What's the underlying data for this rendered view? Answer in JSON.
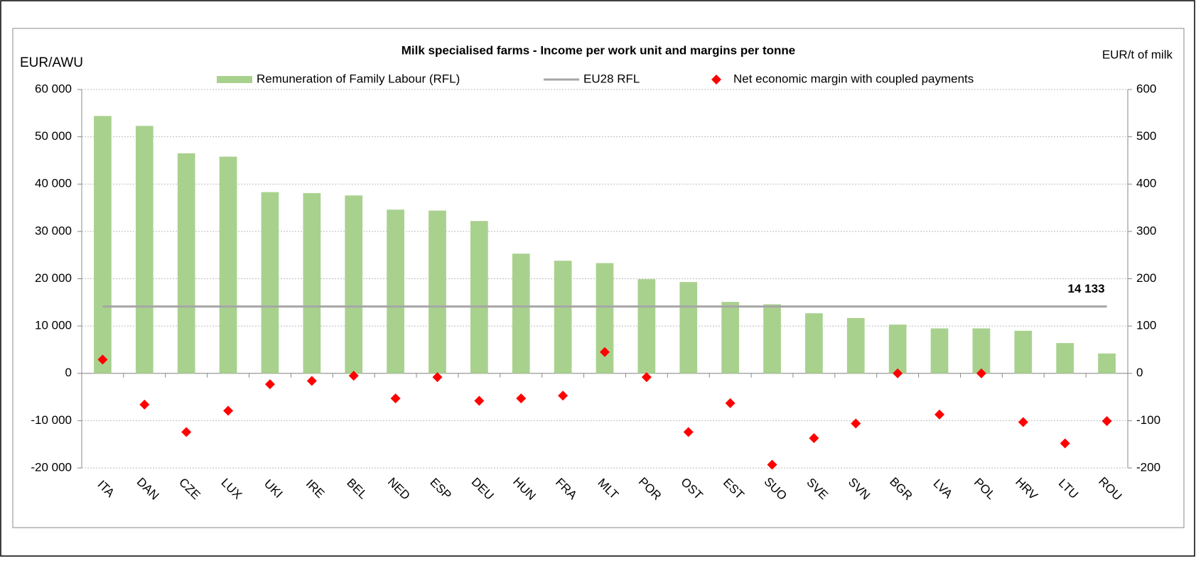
{
  "chart_data": {
    "type": "combo",
    "title": "Milk specialised  farms - Income per work unit and margins per tonne",
    "y_label": "EUR/AWU",
    "y2_label": "EUR/t  of milk",
    "categories": [
      "ITA",
      "DAN",
      "CZE",
      "LUX",
      "UKI",
      "IRE",
      "BEL",
      "NED",
      "ESP",
      "DEU",
      "HUN",
      "FRA",
      "MLT",
      "POR",
      "OST",
      "EST",
      "SUO",
      "SVE",
      "SVN",
      "BGR",
      "LVA",
      "POL",
      "HRV",
      "LTU",
      "ROU"
    ],
    "series": [
      {
        "name": "Remuneration of Family Labour (RFL)",
        "type": "bar",
        "color": "#a9d18e",
        "values": [
          54400,
          52300,
          46500,
          45800,
          38300,
          38100,
          37600,
          34600,
          34400,
          32200,
          25300,
          23800,
          23300,
          19900,
          19300,
          15100,
          14600,
          12700,
          11700,
          10300,
          9500,
          9500,
          9000,
          6400,
          4200
        ]
      },
      {
        "name": "EU28 RFL",
        "type": "line",
        "color": "#a6a6a6",
        "values": [
          14133,
          14133,
          14133,
          14133,
          14133,
          14133,
          14133,
          14133,
          14133,
          14133,
          14133,
          14133,
          14133,
          14133,
          14133,
          14133,
          14133,
          14133,
          14133,
          14133,
          14133,
          14133,
          14133,
          14133,
          14133
        ],
        "value_labels": [
          null,
          null,
          null,
          null,
          null,
          null,
          null,
          null,
          null,
          null,
          null,
          null,
          null,
          null,
          null,
          null,
          null,
          null,
          null,
          null,
          null,
          null,
          null,
          null,
          "14 133"
        ]
      },
      {
        "name": "Net economic margin with coupled payments",
        "type": "scatter",
        "color": "#ff0000",
        "axis": "y2",
        "values": [
          29,
          -66,
          -124,
          -79,
          -23,
          -16,
          -5,
          -53,
          -8,
          -58,
          -53,
          -47,
          45,
          -8,
          -124,
          -63,
          -193,
          -137,
          -106,
          0,
          -87,
          0,
          -103,
          -148,
          -101
        ]
      }
    ],
    "ylim": [
      -20000,
      60000
    ],
    "yticks": [
      {
        "value": -20000,
        "label": "-20 000"
      },
      {
        "value": -10000,
        "label": "-10 000"
      },
      0,
      {
        "value": 10000,
        "label": "10 000"
      },
      {
        "value": 20000,
        "label": "20 000"
      },
      {
        "value": 30000,
        "label": "30 000"
      },
      {
        "value": 40000,
        "label": "40 000"
      },
      {
        "value": 50000,
        "label": "50 000"
      },
      {
        "value": 60000,
        "label": "60 000"
      }
    ],
    "y2lim": [
      -200,
      600
    ],
    "y2ticks": [
      -200,
      -100,
      0,
      100,
      200,
      300,
      400,
      500,
      600
    ],
    "grid": true,
    "legend": "top"
  }
}
